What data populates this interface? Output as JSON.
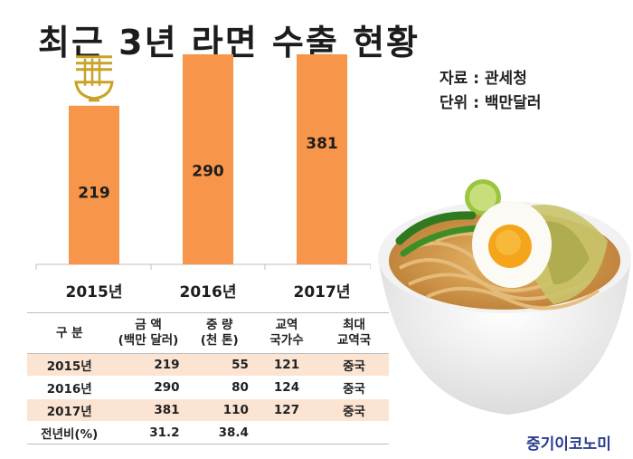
{
  "title": "최근 3년 라면 수출 현황",
  "source": "자료 : 관세청",
  "unit": "단위 : 백만달러",
  "brand": "중기이코노미",
  "colors": {
    "bar": "#f7964a",
    "noodle_icon": "#c9a227",
    "row_shade": "#fbe4d2",
    "brand": "#2a3c8f"
  },
  "chart_data": {
    "type": "bar",
    "categories": [
      "2015년",
      "2016년",
      "2017년"
    ],
    "values": [
      219,
      290,
      381
    ],
    "title": "",
    "xlabel": "",
    "ylabel": "",
    "grid": false,
    "ylim": [
      0,
      400
    ]
  },
  "table": {
    "headers": [
      [
        "구  분"
      ],
      [
        "금  액",
        "(백만 달러)"
      ],
      [
        "중  량",
        "(천 톤)"
      ],
      [
        "교역",
        "국가수"
      ],
      [
        "최대",
        "교역국"
      ]
    ],
    "rows": [
      [
        "2015년",
        "219",
        "55",
        "121",
        "중국"
      ],
      [
        "2016년",
        "290",
        "80",
        "124",
        "중국"
      ],
      [
        "2017년",
        "381",
        "110",
        "127",
        "중국"
      ],
      [
        "전년비(%)",
        "31.2",
        "38.4",
        "",
        ""
      ]
    ]
  }
}
